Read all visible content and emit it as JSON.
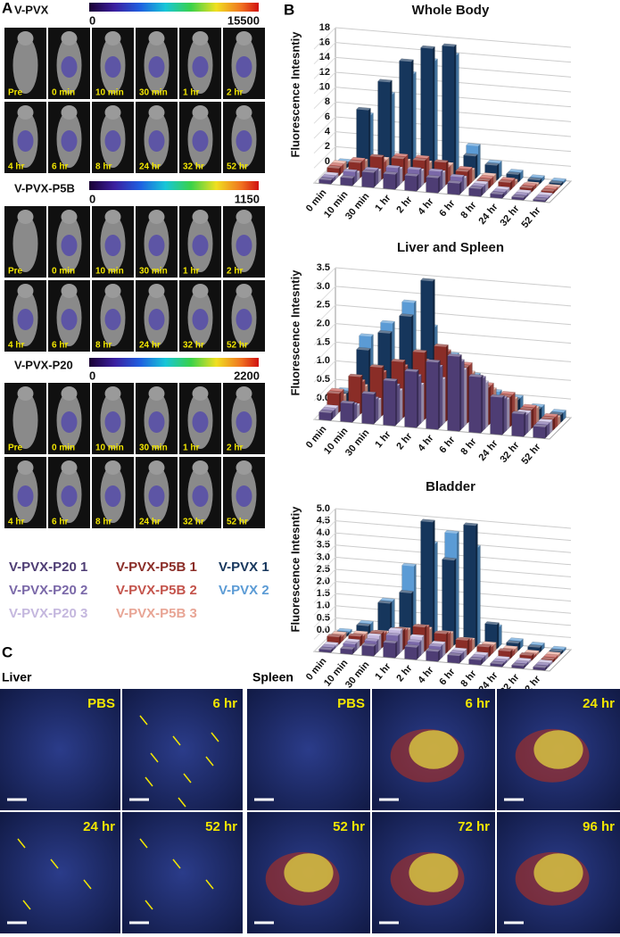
{
  "panel_labels": [
    "A",
    "B",
    "C"
  ],
  "panel_a": {
    "groups": [
      {
        "title": "V-PVX",
        "scale_min": 0,
        "scale_max": 15500,
        "rows": [
          [
            "Pre",
            "0 min",
            "10 min",
            "30 min",
            "1 hr",
            "2 hr"
          ],
          [
            "4 hr",
            "6 hr",
            "8 hr",
            "24 hr",
            "32 hr",
            "52 hr"
          ]
        ]
      },
      {
        "title": "V-PVX-P5B",
        "scale_min": 0,
        "scale_max": 1150,
        "rows": [
          [
            "Pre",
            "0 min",
            "10 min",
            "30 min",
            "1 hr",
            "2 hr"
          ],
          [
            "4 hr",
            "6 hr",
            "8 hr",
            "24 hr",
            "32 hr",
            "52 hr"
          ]
        ]
      },
      {
        "title": "V-PVX-P20",
        "scale_min": 0,
        "scale_max": 2200,
        "rows": [
          [
            "Pre",
            "0 min",
            "10 min",
            "30 min",
            "1 hr",
            "2 hr"
          ],
          [
            "4 hr",
            "6 hr",
            "8 hr",
            "24 hr",
            "32 hr",
            "52 hr"
          ]
        ]
      }
    ]
  },
  "chart_data": [
    {
      "type": "bar3d",
      "title": "Whole Body",
      "y_label": "Fluorescence Intesntiy",
      "categories": [
        "0 min",
        "10 min",
        "30 min",
        "1 hr",
        "2 hr",
        "4 hr",
        "6 hr",
        "8 hr",
        "24 hr",
        "32 hr",
        "52 hr"
      ],
      "ylim": [
        0,
        18
      ],
      "yticks": [
        0,
        2,
        4,
        6,
        8,
        10,
        12,
        14,
        16,
        18
      ],
      "series": [
        {
          "name": "V-PVX-P20 1",
          "color": "#4e3d74",
          "values": [
            0.5,
            1,
            2,
            2,
            2,
            2,
            1.5,
            1,
            0.5,
            0.3,
            0.2
          ]
        },
        {
          "name": "V-PVX-P20 2",
          "color": "#7a68a8",
          "values": [
            0.5,
            1.5,
            2,
            2.5,
            2.5,
            2.5,
            2,
            1,
            0.5,
            0.3,
            0.2
          ]
        },
        {
          "name": "V-PVX-P20 3",
          "color": "#c4b7de",
          "values": [
            0.5,
            1,
            1.5,
            2,
            2,
            2,
            1.5,
            1,
            0.5,
            0.3,
            0.2
          ]
        },
        {
          "name": "V-PVX-P5B 1",
          "color": "#8a2d27",
          "values": [
            1,
            2,
            3,
            3,
            3,
            3,
            2,
            1,
            1,
            0.5,
            0.3
          ]
        },
        {
          "name": "V-PVX-P5B 2",
          "color": "#c4544c",
          "values": [
            1,
            2,
            2,
            3,
            3,
            2,
            2,
            1,
            1,
            0.5,
            0.3
          ]
        },
        {
          "name": "V-PVX-P5B 3",
          "color": "#e8a595",
          "values": [
            1,
            1.5,
            2,
            2,
            2,
            2,
            1.5,
            1,
            0.5,
            0.3,
            0.2
          ]
        },
        {
          "name": "V-PVX 1",
          "color": "#16365c",
          "values": [
            0.5,
            8,
            12,
            15,
            17,
            17.5,
            3,
            2,
            1,
            0.5,
            0.3
          ]
        },
        {
          "name": "V-PVX 2",
          "color": "#5b9bd5",
          "values": [
            0.5,
            7,
            10,
            13,
            15,
            16,
            4,
            2,
            1,
            0.5,
            0.3
          ]
        }
      ]
    },
    {
      "type": "bar3d",
      "title": "Liver and Spleen",
      "y_label": "Fluorescence Intesntiy",
      "categories": [
        "0 min",
        "10 min",
        "30 min",
        "1 hr",
        "2 hr",
        "4 hr",
        "6 hr",
        "8 hr",
        "24 hr",
        "32 hr",
        "52 hr"
      ],
      "ylim": [
        0,
        3.5
      ],
      "yticks": [
        {
          "value": 0,
          "label": "0.0"
        },
        0.5,
        {
          "value": 1,
          "label": "1.0"
        },
        1.5,
        {
          "value": 2,
          "label": "2.0"
        },
        2.5,
        {
          "value": 3,
          "label": "3.0"
        },
        3.5
      ],
      "series": [
        {
          "color": "#4e3d74",
          "values": [
            0.2,
            0.5,
            0.8,
            1.2,
            1.5,
            1.8,
            2,
            1.5,
            1,
            0.6,
            0.3
          ]
        },
        {
          "color": "#7a68a8",
          "values": [
            0.2,
            0.4,
            0.6,
            1,
            1.3,
            1.6,
            1.8,
            1.4,
            0.9,
            0.5,
            0.3
          ]
        },
        {
          "color": "#c4b7de",
          "values": [
            0.2,
            0.3,
            0.5,
            0.8,
            1,
            1.2,
            1.5,
            1.2,
            0.8,
            0.5,
            0.3
          ]
        },
        {
          "color": "#8a2d27",
          "values": [
            0.5,
            1,
            1.3,
            1.5,
            1.8,
            2,
            1.5,
            1,
            0.8,
            0.5,
            0.3
          ]
        },
        {
          "color": "#c4544c",
          "values": [
            0.5,
            0.8,
            1.1,
            1.3,
            1.5,
            1.8,
            1.5,
            1,
            0.8,
            0.5,
            0.3
          ]
        },
        {
          "color": "#e8a595",
          "values": [
            0.3,
            0.6,
            0.8,
            1,
            1.2,
            1.4,
            1.2,
            0.8,
            0.6,
            0.4,
            0.2
          ]
        },
        {
          "color": "#16365c",
          "values": [
            0.3,
            1.5,
            2,
            2.5,
            3.5,
            1.2,
            0.8,
            0.5,
            0.5,
            0.3,
            0.2
          ]
        },
        {
          "color": "#5b9bd5",
          "values": [
            0.3,
            1.8,
            2.2,
            2.8,
            2.2,
            1.5,
            1,
            0.6,
            0.5,
            0.3,
            0.2
          ]
        }
      ]
    },
    {
      "type": "bar3d",
      "title": "Bladder",
      "y_label": "Fluorescence Intesntiy",
      "categories": [
        "0 min",
        "10 min",
        "30 min",
        "1 hr",
        "2 hr",
        "4 hr",
        "6 hr",
        "8 hr",
        "24 hr",
        "32 hr",
        "52 hr"
      ],
      "ylim": [
        0,
        5
      ],
      "yticks": [
        {
          "value": 0,
          "label": "0.0"
        },
        0.5,
        {
          "value": 1,
          "label": "1.0"
        },
        1.5,
        {
          "value": 2,
          "label": "2.0"
        },
        2.5,
        {
          "value": 3,
          "label": "3.0"
        },
        3.5,
        {
          "value": 4,
          "label": "4.0"
        },
        4.5,
        {
          "value": 5,
          "label": "5.0"
        }
      ],
      "series": [
        {
          "color": "#4e3d74",
          "values": [
            0.1,
            0.2,
            0.4,
            0.6,
            0.5,
            0.4,
            0.3,
            0.2,
            0.1,
            0.1,
            0.1
          ]
        },
        {
          "color": "#7a68a8",
          "values": [
            0.1,
            0.3,
            0.5,
            0.8,
            0.6,
            0.5,
            0.3,
            0.2,
            0.1,
            0.1,
            0.1
          ]
        },
        {
          "color": "#c4b7de",
          "values": [
            0.1,
            0.3,
            0.6,
            0.9,
            0.7,
            0.5,
            0.3,
            0.2,
            0.1,
            0.1,
            0.1
          ]
        },
        {
          "color": "#8a2d27",
          "values": [
            0.3,
            0.4,
            0.6,
            0.8,
            1,
            0.8,
            0.6,
            0.4,
            0.3,
            0.2,
            0.1
          ]
        },
        {
          "color": "#c4544c",
          "values": [
            0.2,
            0.3,
            0.5,
            0.7,
            0.9,
            0.7,
            0.5,
            0.3,
            0.2,
            0.1,
            0.1
          ]
        },
        {
          "color": "#e8a595",
          "values": [
            0.2,
            0.3,
            0.4,
            0.6,
            0.7,
            0.6,
            0.4,
            0.3,
            0.2,
            0.1,
            0.1
          ]
        },
        {
          "color": "#16365c",
          "values": [
            0.1,
            0.5,
            1.5,
            2,
            5,
            3.5,
            5,
            1,
            0.3,
            0.2,
            0.1
          ]
        },
        {
          "color": "#5b9bd5",
          "values": [
            0.1,
            0.5,
            1.5,
            3,
            4,
            4.5,
            4,
            0.8,
            0.3,
            0.2,
            0.1
          ]
        }
      ]
    }
  ],
  "panel_c": {
    "liver": {
      "title": "Liver",
      "labels": [
        "PBS",
        "6 hr",
        "24 hr",
        "52 hr"
      ]
    },
    "spleen": {
      "title": "Spleen",
      "labels": [
        "PBS",
        "6 hr",
        "24 hr",
        "52 hr",
        "72 hr",
        "96 hr"
      ]
    }
  }
}
